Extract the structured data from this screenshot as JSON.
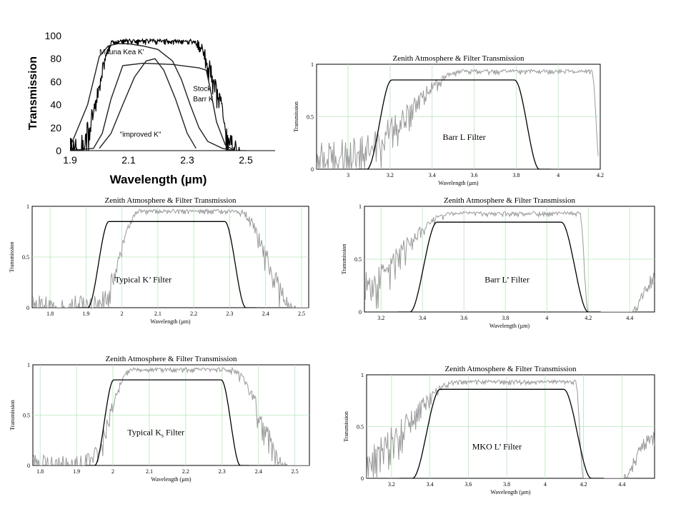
{
  "chart_data": [
    {
      "id": "c0",
      "type": "line",
      "style": "sans",
      "title": "",
      "xlabel": "Wavelength (µm)",
      "ylabel": "Transmission",
      "xlim": [
        1.9,
        2.6
      ],
      "ylim": [
        0,
        100
      ],
      "xticks": [
        1.9,
        2.1,
        2.3,
        2.5
      ],
      "yticks": [
        0,
        20,
        40,
        60,
        80,
        100
      ],
      "grid": false,
      "series": [
        {
          "kind": "atmosphere",
          "lo": 1.9,
          "hi": 2.5,
          "seed": 3,
          "profile": "k",
          "color": "#000000",
          "width": 1.2
        },
        {
          "kind": "curve",
          "color": "#222222",
          "width": 1.4,
          "x": [
            1.9,
            1.96,
            2.0,
            2.03,
            2.06,
            2.1,
            2.15,
            2.2,
            2.25,
            2.28,
            2.31,
            2.34,
            2.37,
            2.42,
            2.46
          ],
          "y": [
            3,
            40,
            82,
            91,
            93,
            93,
            91,
            88,
            78,
            62,
            40,
            20,
            8,
            2,
            0
          ]
        },
        {
          "kind": "curve",
          "color": "#222222",
          "width": 1.4,
          "x": [
            1.9,
            1.98,
            2.01,
            2.04,
            2.08,
            2.15,
            2.25,
            2.34,
            2.365,
            2.38,
            2.4,
            2.43,
            2.46
          ],
          "y": [
            0,
            2,
            15,
            45,
            74,
            76,
            75,
            72,
            70,
            52,
            25,
            5,
            0
          ]
        },
        {
          "kind": "curve",
          "color": "#222222",
          "width": 1.4,
          "x": [
            2.0,
            2.04,
            2.08,
            2.12,
            2.16,
            2.19,
            2.22,
            2.26,
            2.3,
            2.33
          ],
          "y": [
            2,
            15,
            40,
            64,
            78,
            80,
            70,
            45,
            15,
            2
          ]
        }
      ],
      "annotations": [
        {
          "text": "Mauna Kea K'",
          "x": 2.0,
          "y": 84
        },
        {
          "text": "Stock",
          "x": 2.32,
          "y": 52
        },
        {
          "text": "Barr K",
          "x": 2.32,
          "y": 43
        },
        {
          "text": "\"improved K\"",
          "x": 2.07,
          "y": 12
        }
      ]
    },
    {
      "id": "c1",
      "type": "line",
      "style": "serif",
      "title": "Zenith Atmosphere & Filter Transmission",
      "xlabel": "Wavelength (µm)",
      "ylabel": "Transmission",
      "xlim": [
        2.85,
        4.2
      ],
      "ylim": [
        0,
        1
      ],
      "xticks": [
        3,
        3.2,
        3.4,
        3.6,
        3.8,
        4,
        4.2
      ],
      "yticks": [
        0,
        0.5,
        1
      ],
      "grid": true,
      "series": [
        {
          "kind": "atmosphere",
          "lo": 2.85,
          "hi": 4.19,
          "seed": 11,
          "profile": "L",
          "color": "#9a9a9a",
          "width": 1
        },
        {
          "kind": "filter",
          "lo": 3.18,
          "hi": 3.82,
          "plateau": 0.85,
          "edge": 0.09,
          "color": "#000000",
          "width": 1.3
        }
      ],
      "annotations": [
        {
          "text": "Barr L Filter",
          "x": 3.45,
          "y": 0.28
        }
      ]
    },
    {
      "id": "c2",
      "type": "line",
      "style": "serif",
      "title": "Zenith Atmosphere & Filter Transmission",
      "xlabel": "Wavelength (µm)",
      "ylabel": "Transmission",
      "xlim": [
        1.75,
        2.52
      ],
      "ylim": [
        0,
        1
      ],
      "xticks": [
        1.8,
        1.9,
        2,
        2.1,
        2.2,
        2.3,
        2.4,
        2.5
      ],
      "yticks": [
        0,
        0.5,
        1
      ],
      "grid": true,
      "series": [
        {
          "kind": "atmosphere",
          "lo": 1.75,
          "hi": 2.52,
          "seed": 23,
          "profile": "k",
          "color": "#9a9a9a",
          "width": 1
        },
        {
          "kind": "filter",
          "lo": 1.95,
          "hi": 2.3,
          "plateau": 0.85,
          "edge": 0.045,
          "color": "#000000",
          "width": 1.3
        }
      ],
      "annotations": [
        {
          "text": "Typical K’ Filter",
          "x": 1.98,
          "y": 0.25
        }
      ]
    },
    {
      "id": "c3",
      "type": "line",
      "style": "serif",
      "title": "Zenith Atmosphere & Filter Transmission",
      "xlabel": "Wavelength (µm)",
      "ylabel": "Transmission",
      "xlim": [
        3.12,
        4.52
      ],
      "ylim": [
        0,
        1
      ],
      "xticks": [
        3.2,
        3.4,
        3.6,
        3.8,
        4,
        4.2,
        4.4
      ],
      "yticks": [
        0,
        0.5,
        1
      ],
      "grid": true,
      "series": [
        {
          "kind": "atmosphere",
          "lo": 3.12,
          "hi": 4.52,
          "seed": 37,
          "profile": "L",
          "color": "#9a9a9a",
          "width": 1
        },
        {
          "kind": "filter",
          "lo": 3.44,
          "hi": 4.1,
          "plateau": 0.85,
          "edge": 0.1,
          "color": "#000000",
          "width": 1.3
        }
      ],
      "annotations": [
        {
          "text": "Barr L’ Filter",
          "x": 3.7,
          "y": 0.28
        }
      ]
    },
    {
      "id": "c4",
      "type": "line",
      "style": "serif",
      "title": "Zenith Atmosphere & Filter Transmission",
      "xlabel": "Wavelength (µm)",
      "ylabel": "Transmission",
      "xlim": [
        1.78,
        2.54
      ],
      "ylim": [
        0,
        1
      ],
      "xticks": [
        1.8,
        1.9,
        2,
        2.1,
        2.2,
        2.3,
        2.4,
        2.5
      ],
      "yticks": [
        0,
        0.5,
        1
      ],
      "grid": true,
      "series": [
        {
          "kind": "atmosphere",
          "lo": 1.78,
          "hi": 2.54,
          "seed": 51,
          "profile": "k",
          "color": "#9a9a9a",
          "width": 1
        },
        {
          "kind": "filter",
          "lo": 1.99,
          "hi": 2.31,
          "plateau": 0.85,
          "edge": 0.04,
          "color": "#000000",
          "width": 1.3
        }
      ],
      "annotations": [
        {
          "text": "Typical K",
          "sub": "s",
          "tail": " Filter",
          "x": 2.04,
          "y": 0.3
        }
      ]
    },
    {
      "id": "c5",
      "type": "line",
      "style": "serif",
      "title": "Zenith Atmosphere & Filter Transmission",
      "xlabel": "Wavelength (µm)",
      "ylabel": "Transmission",
      "xlim": [
        3.07,
        4.57
      ],
      "ylim": [
        0,
        1
      ],
      "xticks": [
        3.2,
        3.4,
        3.6,
        3.8,
        4,
        4.2,
        4.4
      ],
      "yticks": [
        0,
        0.5,
        1
      ],
      "grid": true,
      "series": [
        {
          "kind": "atmosphere",
          "lo": 3.07,
          "hi": 4.57,
          "seed": 67,
          "profile": "L",
          "color": "#9a9a9a",
          "width": 1
        },
        {
          "kind": "filter",
          "lo": 3.42,
          "hi": 4.13,
          "plateau": 0.86,
          "edge": 0.11,
          "color": "#000000",
          "width": 1.3
        }
      ],
      "annotations": [
        {
          "text": "MKO L’ Filter",
          "x": 3.62,
          "y": 0.28
        }
      ]
    }
  ]
}
